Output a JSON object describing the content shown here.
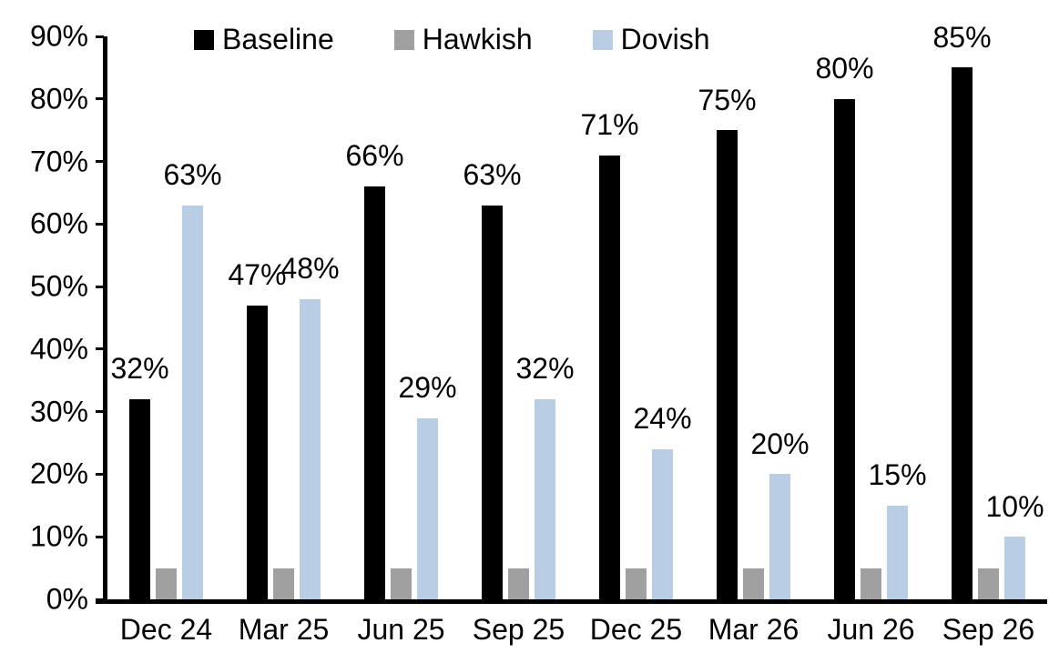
{
  "chart_data": {
    "type": "bar",
    "title": "",
    "xlabel": "",
    "ylabel": "",
    "categories": [
      "Dec 24",
      "Mar 25",
      "Jun 25",
      "Sep 25",
      "Dec 25",
      "Mar 26",
      "Jun 26",
      "Sep 26"
    ],
    "series": [
      {
        "name": "Baseline",
        "color": "#000000",
        "values": [
          32,
          47,
          66,
          63,
          71,
          75,
          80,
          85
        ],
        "data_labels": [
          "32%",
          "47%",
          "66%",
          "63%",
          "71%",
          "75%",
          "80%",
          "85%"
        ]
      },
      {
        "name": "Hawkish",
        "color": "#A0A0A0",
        "values": [
          5,
          5,
          5,
          5,
          5,
          5,
          5,
          5
        ],
        "data_labels": [
          "",
          "",
          "",
          "",
          "",
          "",
          "",
          ""
        ]
      },
      {
        "name": "Dovish",
        "color": "#B9CDE5",
        "values": [
          63,
          48,
          29,
          32,
          24,
          20,
          15,
          10
        ],
        "data_labels": [
          "63%",
          "48%",
          "29%",
          "32%",
          "24%",
          "20%",
          "15%",
          "10%"
        ]
      }
    ],
    "ylim": [
      0,
      90
    ],
    "ytick_step": 10,
    "ytick_labels": [
      "0%",
      "10%",
      "20%",
      "30%",
      "40%",
      "50%",
      "60%",
      "70%",
      "80%",
      "90%"
    ],
    "legend": {
      "position": "top",
      "entries": [
        "Baseline",
        "Hawkish",
        "Dovish"
      ]
    },
    "grid": false,
    "background_color": "#FFFFFF",
    "axis_color": "#000000",
    "text_color": "#000000"
  }
}
